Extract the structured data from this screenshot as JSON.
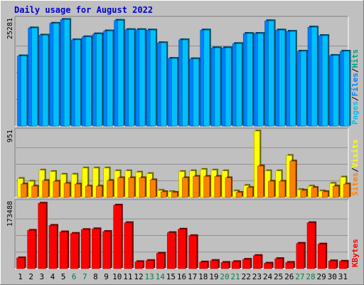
{
  "chart_data": {
    "type": "bar",
    "title": "Daily usage for August 2022",
    "days": [
      "1",
      "2",
      "3",
      "4",
      "5",
      "6",
      "7",
      "8",
      "9",
      "10",
      "11",
      "12",
      "13",
      "14",
      "15",
      "16",
      "17",
      "18",
      "19",
      "20",
      "21",
      "22",
      "23",
      "24",
      "25",
      "26",
      "27",
      "28",
      "29",
      "30",
      "31"
    ],
    "weekend_days": [
      "6",
      "7",
      "13",
      "14",
      "20",
      "21",
      "27",
      "28"
    ],
    "colors": {
      "background": "#c0c0c0",
      "title": "#0000cc",
      "weekday_label": "#000000",
      "weekend_label": "#008040",
      "hits": "#00c0ff",
      "hits_text": "#00a080",
      "files": "#0080ff",
      "pages": "#00c0ff",
      "visits": "#ffff00",
      "sites": "#ff8000",
      "kbytes": "#ff0000"
    },
    "panels": [
      {
        "id": "hits",
        "ymax_label": "25281",
        "ymax": 25281,
        "legend": [
          "Pages",
          "/",
          "Files",
          "/",
          "Hits"
        ],
        "series": [
          {
            "name": "Pages",
            "color": "#00c0ff",
            "values": [
              0,
              0,
              0,
              0,
              0,
              0,
              0,
              0,
              0,
              0,
              0,
              0,
              0,
              0,
              0,
              0,
              0,
              0,
              0,
              0,
              0,
              0,
              0,
              0,
              0,
              0,
              0,
              0,
              0,
              0,
              0
            ]
          },
          {
            "name": "Files",
            "color": "#0080ff",
            "values": [
              16600,
              23200,
              21500,
              24300,
              25200,
              20400,
              21100,
              21800,
              22500,
              25000,
              22800,
              22800,
              22700,
              19700,
              16000,
              20400,
              15900,
              22700,
              18500,
              18500,
              19500,
              21900,
              21900,
              24900,
              22700,
              22400,
              17700,
              23400,
              21400,
              16700,
              17700
            ]
          },
          {
            "name": "Hits",
            "color": "#00c0ff",
            "values": [
              16600,
              23200,
              21500,
              24300,
              25200,
              20400,
              21100,
              21800,
              22500,
              25000,
              22800,
              22800,
              22700,
              19700,
              16000,
              20400,
              15900,
              22700,
              18500,
              18500,
              19500,
              21900,
              21900,
              24900,
              22700,
              22400,
              17700,
              23400,
              21400,
              16700,
              17700
            ]
          }
        ]
      },
      {
        "id": "visits",
        "ymax_label": "951",
        "ymax": 951,
        "legend": [
          "Sites",
          "/",
          "Visits"
        ],
        "series": [
          {
            "name": "Visits",
            "color": "#ffff00",
            "values": [
              270,
              230,
              390,
              370,
              330,
              330,
              420,
              420,
              420,
              380,
              380,
              360,
              340,
              100,
              80,
              370,
              380,
              400,
              390,
              380,
              90,
              170,
              951,
              380,
              380,
              600,
              110,
              160,
              90,
              200,
              290
            ]
          },
          {
            "name": "Sites",
            "color": "#ff8000",
            "values": [
              190,
              160,
              240,
              230,
              200,
              190,
              160,
              160,
              240,
              280,
              280,
              280,
              250,
              80,
              70,
              280,
              300,
              300,
              300,
              280,
              70,
              140,
              450,
              230,
              230,
              520,
              100,
              140,
              80,
              160,
              190
            ]
          }
        ]
      },
      {
        "id": "kbytes",
        "ymax_label": "173488",
        "ymax": 173488,
        "legend": [
          "KBytes"
        ],
        "series": [
          {
            "name": "KBytes",
            "color": "#ff0000",
            "values": [
              28000,
              100000,
              171000,
              113000,
              96000,
              92000,
              102000,
              104000,
              97000,
              166000,
              120000,
              18000,
              21000,
              40000,
              94000,
              103000,
              86000,
              17000,
              21000,
              16000,
              18000,
              24000,
              34000,
              14000,
              26000,
              16000,
              66000,
              120000,
              64000,
              20000,
              19000
            ]
          }
        ]
      }
    ]
  }
}
